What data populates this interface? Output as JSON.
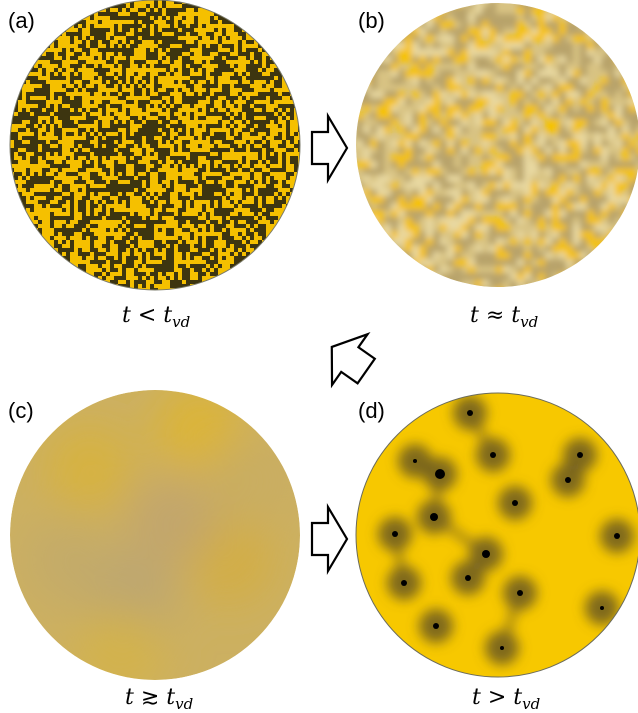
{
  "panels": [
    {
      "id": "a",
      "label": "(a)",
      "caption_t": "t",
      "caption_rel": " < ",
      "caption_tv": "t",
      "caption_sub": "vd"
    },
    {
      "id": "b",
      "label": "(b)",
      "caption_t": "t",
      "caption_rel": " ≈ ",
      "caption_tv": "t",
      "caption_sub": "vd"
    },
    {
      "id": "c",
      "label": "(c)",
      "caption_t": "t",
      "caption_rel": " ≳ ",
      "caption_tv": "t",
      "caption_sub": "vd"
    },
    {
      "id": "d",
      "label": "(d)",
      "caption_t": "t",
      "caption_rel": " > ",
      "caption_tv": "t",
      "caption_sub": "vd"
    }
  ],
  "colors": {
    "gold": "#f5c000",
    "dark": "#3d3510",
    "haze_light": "#e2cd8e",
    "haze_mid": "#c9b27a",
    "uniform": "#ccb061",
    "vortex_core": "#000000",
    "vortex_halo": "#6b5a22"
  },
  "arrows": [
    "right-arrow",
    "down-left-arrow",
    "right-arrow"
  ]
}
